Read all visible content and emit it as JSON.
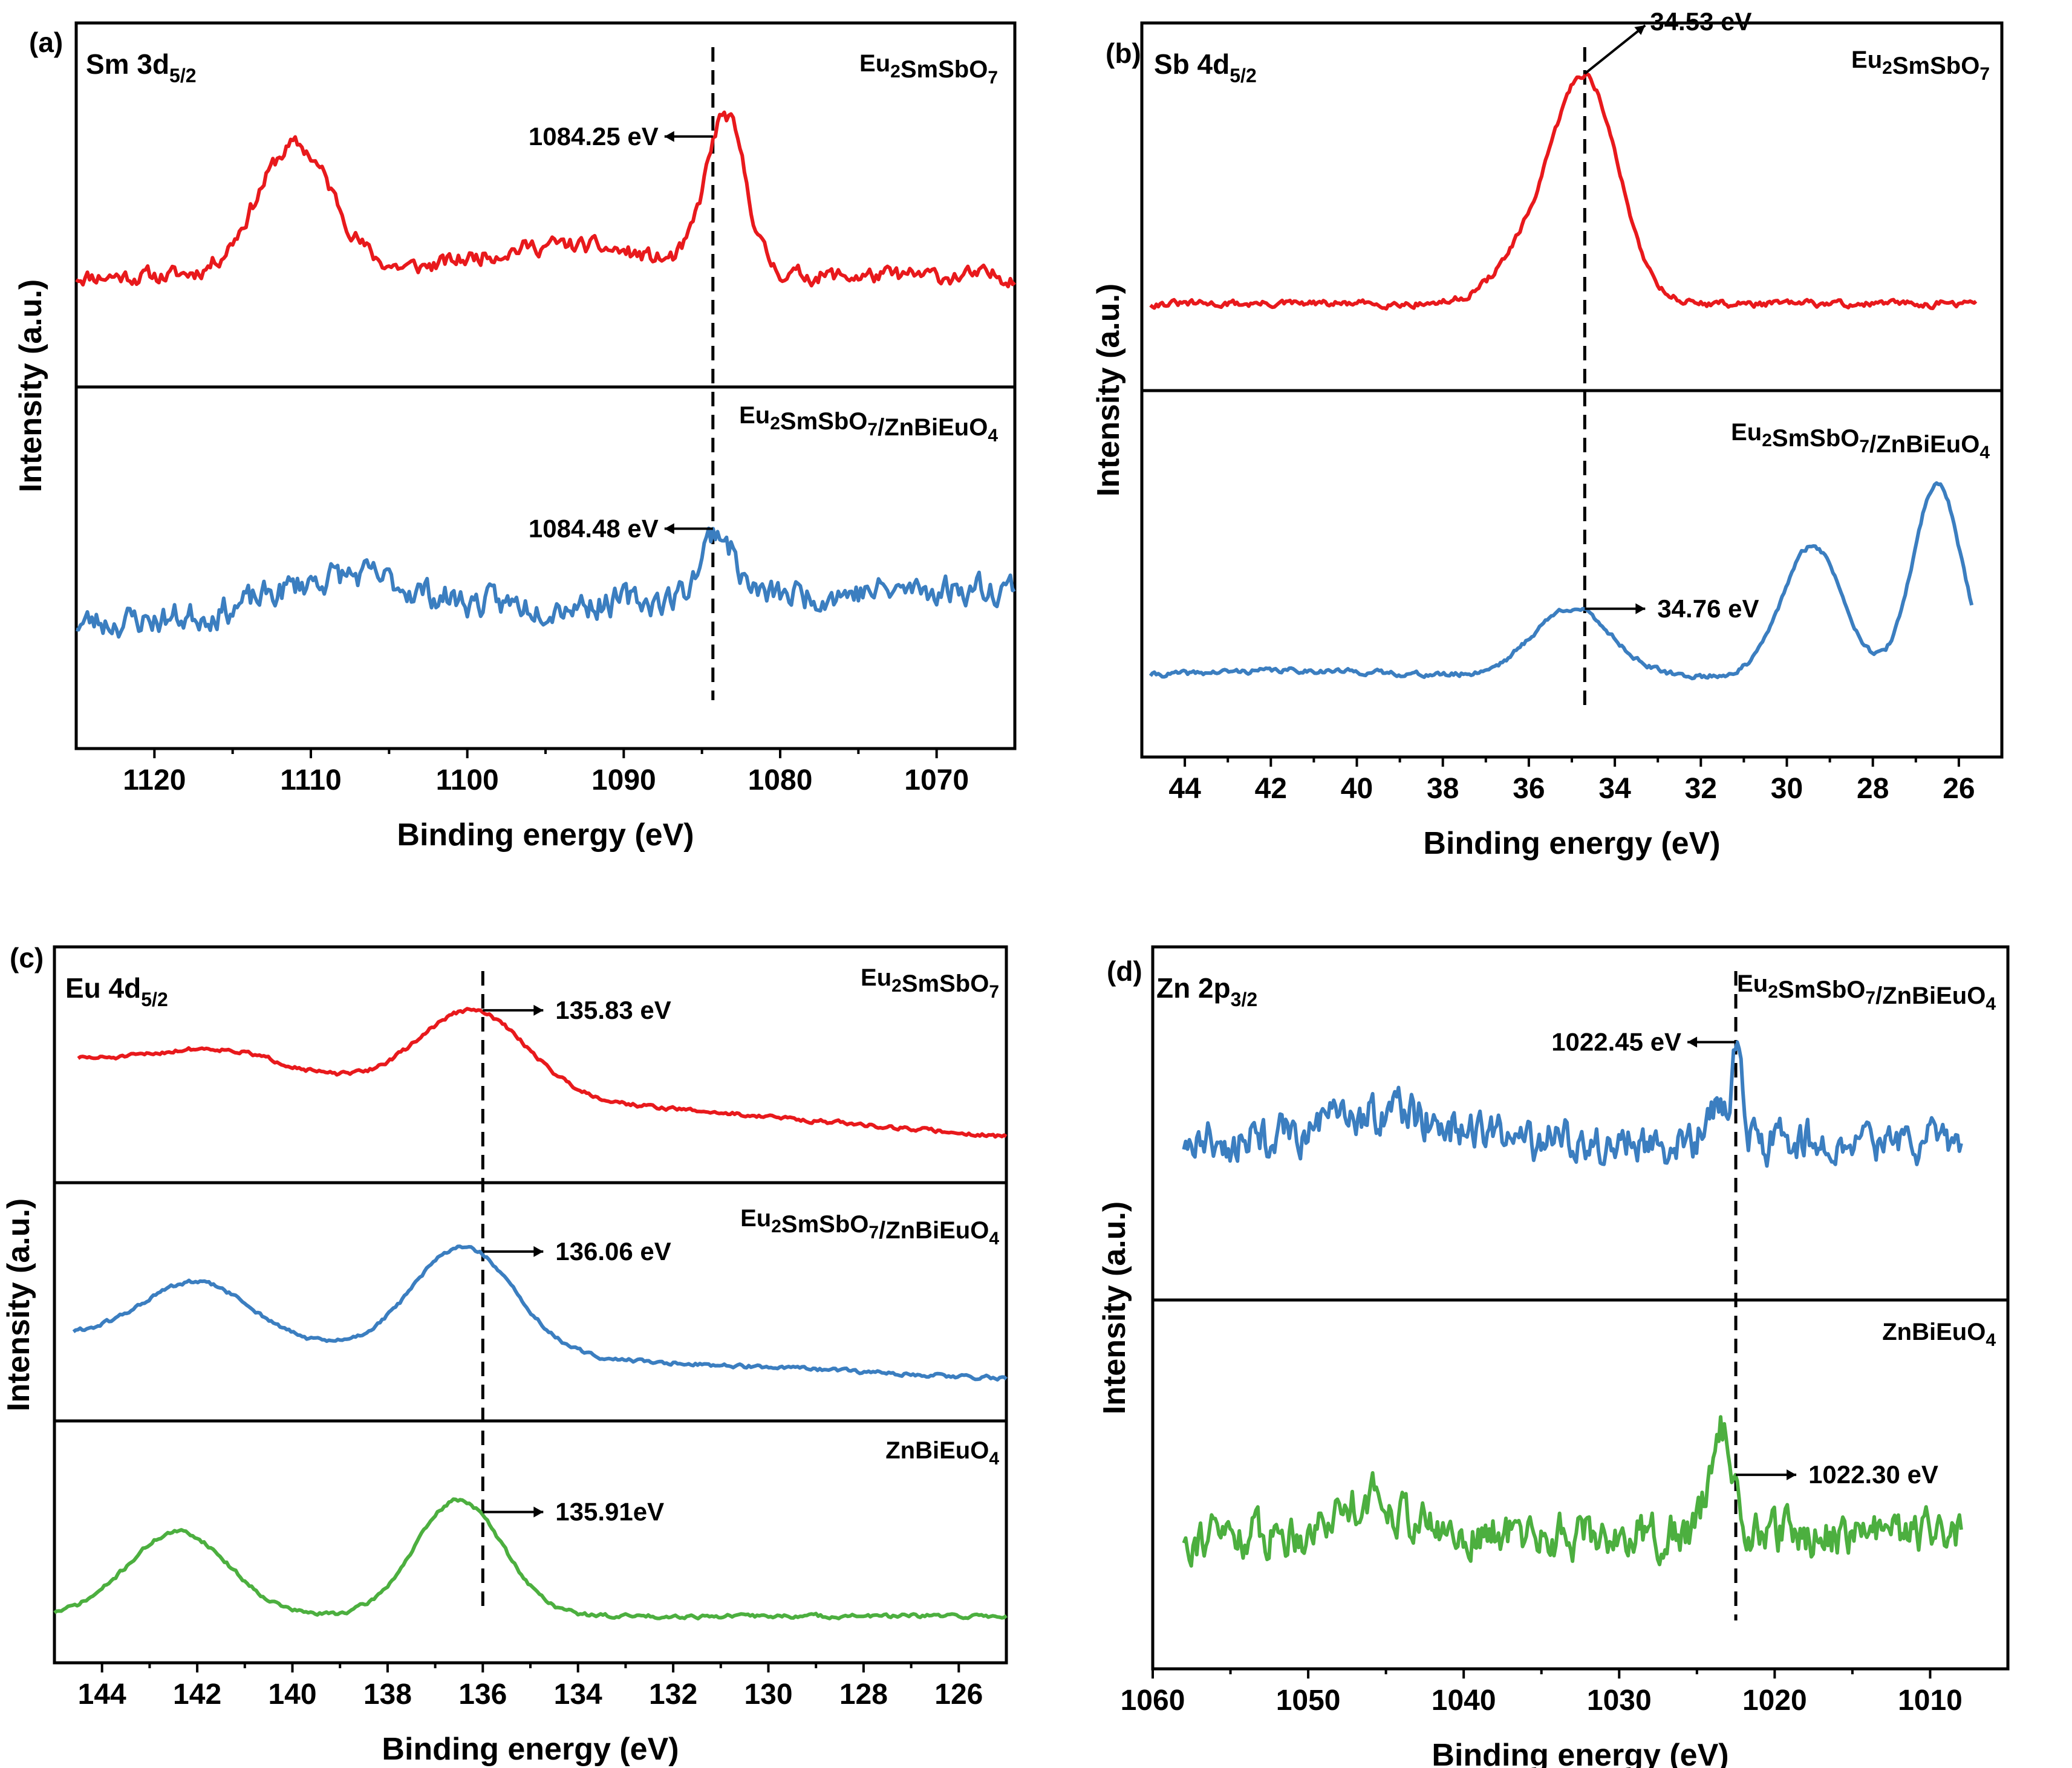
{
  "chart_data": [
    {
      "type": "line",
      "id": "a",
      "panel_label": "(a)",
      "title_main": "Sm 3d",
      "title_sub": "5/2",
      "xlabel": "Binding energy (eV)",
      "ylabel": "Intensity (a.u.)",
      "xlim": [
        1125,
        1065
      ],
      "xticks": [
        1120,
        1110,
        1100,
        1090,
        1080,
        1070
      ],
      "dashed_line_x": 1084.3,
      "series": [
        {
          "name": "Eu2SmSbO7",
          "label_main": "Eu",
          "label_parts": [
            [
              "Eu",
              ""
            ],
            [
              "2",
              "sub"
            ],
            [
              "SmSbO",
              ""
            ],
            [
              "7",
              "sub"
            ]
          ],
          "color": "#e8191c",
          "noise": 0.05,
          "seed": 11,
          "baseline": 0.28,
          "slope": 0,
          "peaks": [
            [
              1111,
              0.42,
              3.5
            ],
            [
              1083.5,
              0.5,
              1.8
            ],
            [
              1094,
              0.1,
              8
            ]
          ],
          "x_start": 1125,
          "x_end": 1065,
          "annotation": {
            "text": "1084.25 eV",
            "dir": "left"
          }
        },
        {
          "name": "Eu2SmSbO7/ZnBiEuO4",
          "label_parts": [
            [
              "Eu",
              ""
            ],
            [
              "2",
              "sub"
            ],
            [
              "SmSbO",
              ""
            ],
            [
              "7",
              "sub"
            ],
            [
              "/ZnBiEuO",
              ""
            ],
            [
              "4",
              "sub"
            ]
          ],
          "color": "#3b7ec0",
          "noise": 0.09,
          "seed": 23,
          "baseline": 0.45,
          "slope": -0.002,
          "peaks": [
            [
              1084,
              0.22,
              1.5
            ],
            [
              1108,
              0.12,
              6
            ]
          ],
          "x_start": 1125,
          "x_end": 1065,
          "annotation": {
            "text": "1084.48 eV",
            "dir": "left"
          }
        }
      ]
    },
    {
      "type": "line",
      "id": "b",
      "panel_label": "(b)",
      "title_main": "Sb 4d",
      "title_sub": "5/2",
      "xlabel": "Binding energy (eV)",
      "ylabel": "Intensity (a.u.)",
      "xlim": [
        45,
        25
      ],
      "xticks": [
        44,
        42,
        40,
        38,
        36,
        34,
        32,
        30,
        28,
        26
      ],
      "dashed_line_x": 34.7,
      "series": [
        {
          "name": "Eu2SmSbO7",
          "label_parts": [
            [
              "Eu",
              ""
            ],
            [
              "2",
              "sub"
            ],
            [
              "SmSbO",
              ""
            ],
            [
              "7",
              "sub"
            ]
          ],
          "color": "#e8191c",
          "noise": 0.02,
          "seed": 31,
          "baseline": 0.2,
          "slope": 0,
          "peaks": [
            [
              34.7,
              0.72,
              1.1
            ],
            [
              36.2,
              0.12,
              1.0
            ]
          ],
          "x_start": 44.8,
          "x_end": 25.6,
          "annotation": {
            "text": "34.53 eV",
            "dir": "up-right"
          }
        },
        {
          "name": "Eu2SmSbO7/ZnBiEuO4",
          "label_parts": [
            [
              "Eu",
              ""
            ],
            [
              "2",
              "sub"
            ],
            [
              "SmSbO",
              ""
            ],
            [
              "7",
              "sub"
            ],
            [
              "/ZnBiEuO",
              ""
            ],
            [
              "4",
              "sub"
            ]
          ],
          "color": "#3b7ec0",
          "noise": 0.015,
          "seed": 41,
          "baseline": 0.18,
          "slope": 0,
          "peaks": [
            [
              35.0,
              0.22,
              1.3
            ],
            [
              29.4,
              0.42,
              1.0
            ],
            [
              26.5,
              0.62,
              0.8
            ],
            [
              41.5,
              0.02,
              3
            ]
          ],
          "x_start": 44.8,
          "x_end": 25.7,
          "annotation": {
            "text": "34.76 eV",
            "dir": "right"
          }
        }
      ]
    },
    {
      "type": "line",
      "id": "c",
      "panel_label": "(c)",
      "title_main": "Eu 4d",
      "title_sub": "5/2",
      "xlabel": "Binding energy (eV)",
      "ylabel": "Intensity (a.u.)",
      "xlim": [
        145,
        125
      ],
      "xticks": [
        144,
        142,
        140,
        138,
        136,
        134,
        132,
        130,
        128,
        126
      ],
      "dashed_line_x": 136.0,
      "series": [
        {
          "name": "Eu2SmSbO7",
          "label_parts": [
            [
              "Eu",
              ""
            ],
            [
              "2",
              "sub"
            ],
            [
              "SmSbO",
              ""
            ],
            [
              "7",
              "sub"
            ]
          ],
          "color": "#e8191c",
          "noise": 0.02,
          "seed": 51,
          "baseline": 0.12,
          "slope": 0.022,
          "peaks": [
            [
              136.2,
              0.45,
              1.6
            ],
            [
              141.5,
              0.12,
              1.8
            ]
          ],
          "x_start": 144.5,
          "x_end": 125,
          "annotation": {
            "text": "135.83 eV",
            "dir": "right"
          }
        },
        {
          "name": "Eu2SmSbO7/ZnBiEuO4",
          "label_parts": [
            [
              "Eu",
              ""
            ],
            [
              "2",
              "sub"
            ],
            [
              "SmSbO",
              ""
            ],
            [
              "7",
              "sub"
            ],
            [
              "/ZnBiEuO",
              ""
            ],
            [
              "4",
              "sub"
            ]
          ],
          "color": "#3b7ec0",
          "noise": 0.02,
          "seed": 61,
          "baseline": 0.1,
          "slope": 0.012,
          "peaks": [
            [
              136.4,
              0.58,
              1.5
            ],
            [
              142.0,
              0.32,
              1.6
            ]
          ],
          "x_start": 144.6,
          "x_end": 125,
          "annotation": {
            "text": "136.06 eV",
            "dir": "right"
          }
        },
        {
          "name": "ZnBiEuO4",
          "label_parts": [
            [
              "ZnBiEuO",
              ""
            ],
            [
              "4",
              "sub"
            ]
          ],
          "color": "#4caf3f",
          "noise": 0.02,
          "seed": 71,
          "baseline": 0.12,
          "slope": 0,
          "peaks": [
            [
              136.5,
              0.62,
              1.3
            ],
            [
              142.4,
              0.45,
              1.5
            ]
          ],
          "x_start": 145,
          "x_end": 125,
          "annotation": {
            "text": "135.91eV",
            "dir": "right"
          }
        }
      ]
    },
    {
      "type": "line",
      "id": "d",
      "panel_label": "(d)",
      "title_main": "Zn 2p",
      "title_sub": "3/2",
      "xlabel": "Binding energy (eV)",
      "ylabel": "Intensity (a.u.)",
      "xlim": [
        1060,
        1005
      ],
      "xticks": [
        1060,
        1050,
        1040,
        1030,
        1020,
        1010
      ],
      "dashed_line_x": 1022.5,
      "series": [
        {
          "name": "Eu2SmSbO7/ZnBiEuO4",
          "label_parts": [
            [
              "Eu",
              ""
            ],
            [
              "2",
              "sub"
            ],
            [
              "SmSbO",
              ""
            ],
            [
              "7",
              "sub"
            ],
            [
              "/ZnBiEuO",
              ""
            ],
            [
              "4",
              "sub"
            ]
          ],
          "color": "#3b7ec0",
          "noise": 0.13,
          "seed": 81,
          "baseline": 0.45,
          "slope": 0,
          "peaks": [
            [
              1022.4,
              0.3,
              0.35
            ],
            [
              1045,
              0.1,
              5
            ],
            [
              1023.5,
              0.12,
              1
            ]
          ],
          "x_start": 1058,
          "x_end": 1008,
          "annotation": {
            "text": "1022.45 eV",
            "dir": "left"
          }
        },
        {
          "name": "ZnBiEuO4",
          "label_parts": [
            [
              "ZnBiEuO",
              ""
            ],
            [
              "4",
              "sub"
            ]
          ],
          "color": "#4caf3f",
          "noise": 0.13,
          "seed": 91,
          "baseline": 0.35,
          "slope": 0,
          "peaks": [
            [
              1023.5,
              0.35,
              1.0
            ],
            [
              1046,
              0.12,
              3
            ]
          ],
          "x_start": 1058,
          "x_end": 1008,
          "annotation": {
            "text": "1022.30 eV",
            "dir": "right"
          }
        }
      ]
    }
  ]
}
